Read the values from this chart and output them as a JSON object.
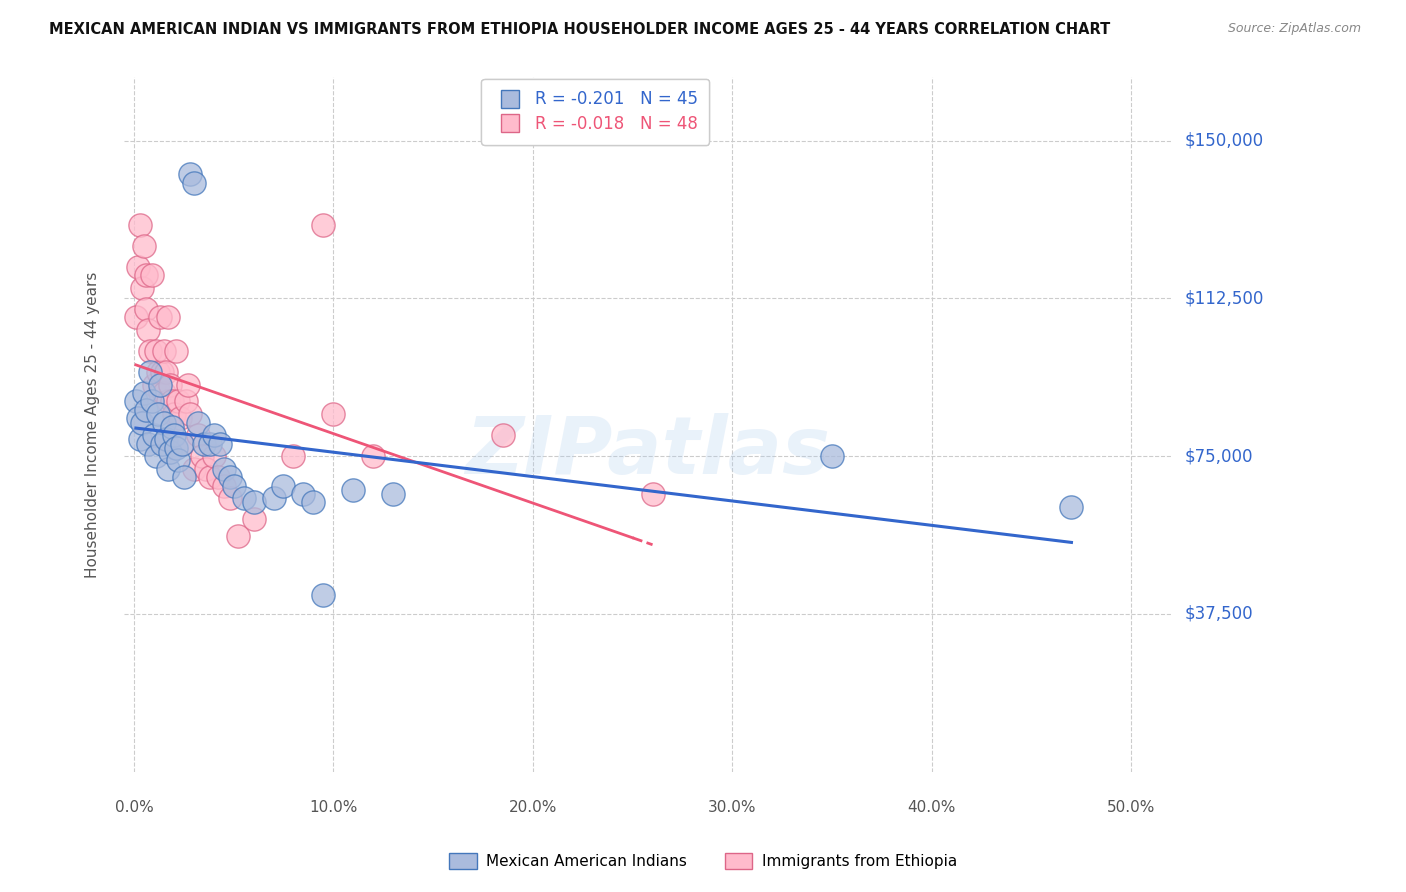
{
  "title": "MEXICAN AMERICAN INDIAN VS IMMIGRANTS FROM ETHIOPIA HOUSEHOLDER INCOME AGES 25 - 44 YEARS CORRELATION CHART",
  "source": "Source: ZipAtlas.com",
  "ylabel": "Householder Income Ages 25 - 44 years",
  "xtick_labels": [
    "0.0%",
    "10.0%",
    "20.0%",
    "30.0%",
    "40.0%",
    "50.0%"
  ],
  "xtick_vals": [
    0.0,
    0.1,
    0.2,
    0.3,
    0.4,
    0.5
  ],
  "ytick_labels": [
    "$37,500",
    "$75,000",
    "$112,500",
    "$150,000"
  ],
  "ytick_vals": [
    37500,
    75000,
    112500,
    150000
  ],
  "ylim": [
    0,
    165000
  ],
  "xlim": [
    -0.005,
    0.52
  ],
  "blue_R": "-0.201",
  "blue_N": "45",
  "pink_R": "-0.018",
  "pink_N": "48",
  "blue_scatter_color": "#aabbdd",
  "blue_edge_color": "#4477bb",
  "pink_scatter_color": "#ffbbcc",
  "pink_edge_color": "#dd6688",
  "blue_line_color": "#3366cc",
  "pink_line_color": "#ee5577",
  "watermark": "ZIPatlas",
  "legend_label_blue": "Mexican American Indians",
  "legend_label_pink": "Immigrants from Ethiopia",
  "blue_x": [
    0.001,
    0.002,
    0.003,
    0.004,
    0.005,
    0.006,
    0.007,
    0.008,
    0.009,
    0.01,
    0.011,
    0.012,
    0.013,
    0.014,
    0.015,
    0.016,
    0.017,
    0.018,
    0.019,
    0.02,
    0.021,
    0.022,
    0.024,
    0.025,
    0.028,
    0.03,
    0.032,
    0.035,
    0.038,
    0.04,
    0.043,
    0.045,
    0.048,
    0.05,
    0.055,
    0.06,
    0.07,
    0.075,
    0.085,
    0.09,
    0.095,
    0.11,
    0.13,
    0.35,
    0.47
  ],
  "blue_y": [
    88000,
    84000,
    79000,
    83000,
    90000,
    86000,
    78000,
    95000,
    88000,
    80000,
    75000,
    85000,
    92000,
    78000,
    83000,
    79000,
    72000,
    76000,
    82000,
    80000,
    77000,
    74000,
    78000,
    70000,
    142000,
    140000,
    83000,
    78000,
    78000,
    80000,
    78000,
    72000,
    70000,
    68000,
    65000,
    64000,
    65000,
    68000,
    66000,
    64000,
    42000,
    67000,
    66000,
    75000,
    63000
  ],
  "pink_x": [
    0.001,
    0.002,
    0.003,
    0.004,
    0.005,
    0.006,
    0.006,
    0.007,
    0.008,
    0.009,
    0.01,
    0.011,
    0.012,
    0.013,
    0.013,
    0.014,
    0.015,
    0.015,
    0.016,
    0.017,
    0.017,
    0.018,
    0.019,
    0.02,
    0.021,
    0.022,
    0.023,
    0.024,
    0.026,
    0.027,
    0.028,
    0.03,
    0.032,
    0.034,
    0.036,
    0.038,
    0.04,
    0.042,
    0.045,
    0.048,
    0.052,
    0.06,
    0.08,
    0.095,
    0.1,
    0.12,
    0.185,
    0.26
  ],
  "pink_y": [
    108000,
    120000,
    130000,
    115000,
    125000,
    118000,
    110000,
    105000,
    100000,
    118000,
    92000,
    100000,
    95000,
    108000,
    90000,
    95000,
    100000,
    90000,
    95000,
    108000,
    88000,
    92000,
    88000,
    85000,
    100000,
    88000,
    84000,
    78000,
    88000,
    92000,
    85000,
    72000,
    80000,
    75000,
    72000,
    70000,
    75000,
    70000,
    68000,
    65000,
    56000,
    60000,
    75000,
    130000,
    85000,
    75000,
    80000,
    66000
  ]
}
